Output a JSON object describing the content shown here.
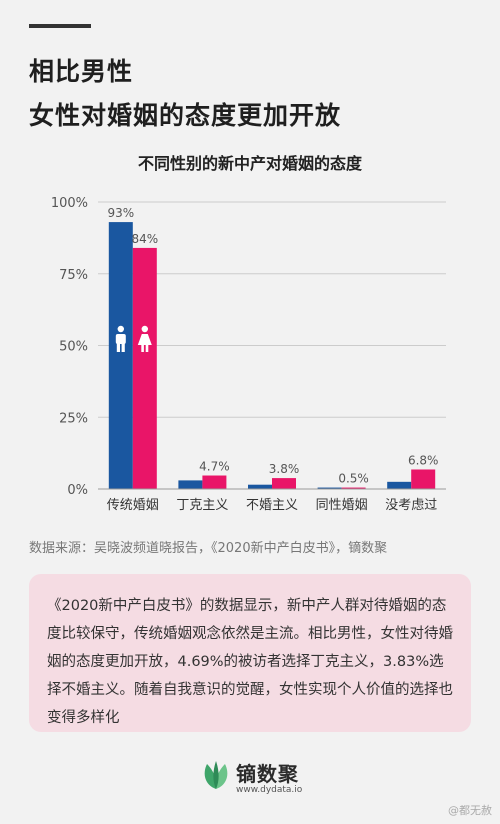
{
  "header": {
    "line1": "相比男性",
    "line2": "女性对婚姻的态度更加开放"
  },
  "chart_data": {
    "type": "bar",
    "title": "不同性别的新中产对婚姻的态度",
    "categories": [
      "传统婚姻",
      "丁克主义",
      "不婚主义",
      "同性婚姻",
      "没考虑过"
    ],
    "series": [
      {
        "values": [
          93,
          3.0,
          1.5,
          0.5,
          2.5
        ],
        "color": "#1a57a0"
      },
      {
        "values": [
          84,
          4.7,
          3.8,
          0.5,
          6.8
        ],
        "color": "#e91568"
      }
    ],
    "data_labels": [
      {
        "series": 0,
        "index": 0,
        "text": "93%"
      },
      {
        "series": 1,
        "index": 0,
        "text": "84%"
      },
      {
        "series": 1,
        "index": 1,
        "text": "4.7%"
      },
      {
        "series": 1,
        "index": 2,
        "text": "3.8%"
      },
      {
        "series": 1,
        "index": 3,
        "text": "0.5%"
      },
      {
        "series": 1,
        "index": 4,
        "text": "6.8%"
      }
    ],
    "yticks": [
      "0%",
      "25%",
      "50%",
      "75%",
      "100%"
    ],
    "ylim": [
      0,
      100
    ],
    "grid": true,
    "icons": [
      "male-icon",
      "female-icon"
    ]
  },
  "source": "数据来源：吴晓波频道晓报告，《2020新中产白皮书》，镝数聚",
  "summary": "《2020新中产白皮书》的数据显示，新中产人群对待婚姻的态度比较保守，传统婚姻观念依然是主流。相比男性，女性对待婚姻的态度更加开放，4.69%的被访者选择丁克主义，3.83%选择不婚主义。随着自我意识的觉醒，女性实现个人价值的选择也变得多样化",
  "brand": {
    "name": "镝数聚",
    "url": "www.dydata.io"
  },
  "watermark": "@都无赦",
  "colors": {
    "male": "#1a57a0",
    "female": "#e91568",
    "card": "#f5dce3",
    "logo": "#3fa56a"
  }
}
